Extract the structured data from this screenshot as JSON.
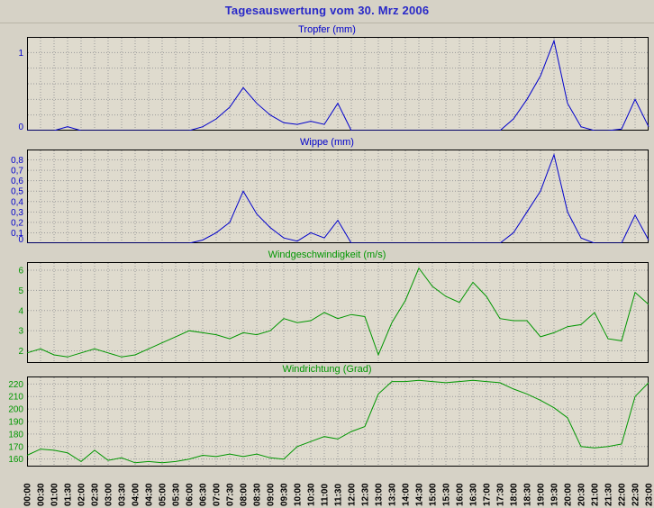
{
  "page_title": "Tagesauswertung vom 30. Mrz 2006",
  "colors": {
    "page_bg": "#d6d2c6",
    "plot_bg": "#dfdbce",
    "grid": "#9a9a9a",
    "border": "#000000",
    "page_title": "#2828c8",
    "x_label": "#000000",
    "blue_series": "#0000cc",
    "green_series": "#009600"
  },
  "x_categories": [
    "00:00",
    "00:30",
    "01:00",
    "01:30",
    "02:00",
    "02:30",
    "03:00",
    "03:30",
    "04:00",
    "04:30",
    "05:00",
    "05:30",
    "06:00",
    "06:30",
    "07:00",
    "07:30",
    "08:00",
    "08:30",
    "09:00",
    "09:30",
    "10:00",
    "10:30",
    "11:00",
    "11:30",
    "12:00",
    "12:30",
    "13:00",
    "13:30",
    "14:00",
    "14:30",
    "15:00",
    "15:30",
    "16:00",
    "16:30",
    "17:00",
    "17:30",
    "18:00",
    "18:30",
    "19:00",
    "19:30",
    "20:00",
    "20:30",
    "21:00",
    "21:30",
    "22:00",
    "22:30",
    "23:00"
  ],
  "chart_data": [
    {
      "type": "line",
      "title": "Tropfer (mm)",
      "color": "#0000cc",
      "ylim": [
        0,
        1.2
      ],
      "yticks": [
        [
          1,
          "1"
        ],
        [
          0.8,
          ""
        ],
        [
          0.6,
          ""
        ],
        [
          0.4,
          ""
        ],
        [
          0.2,
          ""
        ],
        [
          0,
          "0"
        ]
      ],
      "values": [
        0,
        0,
        0,
        0.05,
        0,
        0,
        0,
        0,
        0,
        0,
        0,
        0,
        0,
        0.05,
        0.15,
        0.3,
        0.55,
        0.35,
        0.2,
        0.1,
        0.08,
        0.12,
        0.08,
        0.35,
        0,
        0,
        0,
        0,
        0,
        0,
        0,
        0,
        0,
        0,
        0,
        0,
        0.15,
        0.4,
        0.7,
        1.15,
        0.35,
        0.05,
        0,
        0,
        0.02,
        0.4,
        0.05
      ]
    },
    {
      "type": "line",
      "title": "Wippe (mm)",
      "color": "#0000cc",
      "ylim": [
        0,
        0.9
      ],
      "yticks": [
        [
          0.8,
          "0,8"
        ],
        [
          0.7,
          "0,7"
        ],
        [
          0.6,
          "0,6"
        ],
        [
          0.5,
          "0,5"
        ],
        [
          0.4,
          "0,4"
        ],
        [
          0.3,
          "0,3"
        ],
        [
          0.2,
          "0,2"
        ],
        [
          0.1,
          "0,1"
        ],
        [
          0,
          "0"
        ]
      ],
      "values": [
        0,
        0,
        0,
        0,
        0,
        0,
        0,
        0,
        0,
        0,
        0,
        0,
        0,
        0.03,
        0.1,
        0.2,
        0.5,
        0.28,
        0.15,
        0.05,
        0.02,
        0.1,
        0.05,
        0.22,
        0,
        0,
        0,
        0,
        0,
        0,
        0,
        0,
        0,
        0,
        0,
        0,
        0.1,
        0.3,
        0.5,
        0.85,
        0.3,
        0.05,
        0,
        0,
        0,
        0.27,
        0.03
      ]
    },
    {
      "type": "line",
      "title": "Windgeschwindigkeit (m/s)",
      "color": "#009600",
      "ylim": [
        1.4,
        6.4
      ],
      "yticks": [
        [
          6,
          "6"
        ],
        [
          5,
          "5"
        ],
        [
          4,
          "4"
        ],
        [
          3,
          "3"
        ],
        [
          2,
          "2"
        ]
      ],
      "values": [
        1.9,
        2.1,
        1.8,
        1.7,
        1.9,
        2.1,
        1.9,
        1.7,
        1.8,
        2.1,
        2.4,
        2.7,
        3.0,
        2.9,
        2.8,
        2.6,
        2.9,
        2.8,
        3.0,
        3.6,
        3.4,
        3.5,
        3.9,
        3.6,
        3.8,
        3.7,
        1.8,
        3.4,
        4.5,
        6.1,
        5.2,
        4.7,
        4.4,
        5.4,
        4.7,
        3.6,
        3.5,
        3.5,
        2.7,
        2.9,
        3.2,
        3.3,
        3.9,
        2.6,
        2.5,
        4.9,
        4.3
      ]
    },
    {
      "type": "line",
      "title": "Windrichtung (Grad)",
      "color": "#009600",
      "ylim": [
        154,
        226
      ],
      "yticks": [
        [
          220,
          "220"
        ],
        [
          210,
          "210"
        ],
        [
          200,
          "200"
        ],
        [
          190,
          "190"
        ],
        [
          180,
          "180"
        ],
        [
          170,
          "170"
        ],
        [
          160,
          "160"
        ]
      ],
      "values": [
        163,
        168,
        167,
        165,
        158,
        167,
        159,
        161,
        157,
        158,
        157,
        158,
        160,
        163,
        162,
        164,
        162,
        164,
        161,
        160,
        170,
        174,
        178,
        176,
        182,
        186,
        212,
        222,
        222,
        223,
        222,
        221,
        222,
        223,
        222,
        221,
        216,
        212,
        207,
        201,
        193,
        170,
        169,
        170,
        172,
        210,
        221
      ]
    }
  ]
}
